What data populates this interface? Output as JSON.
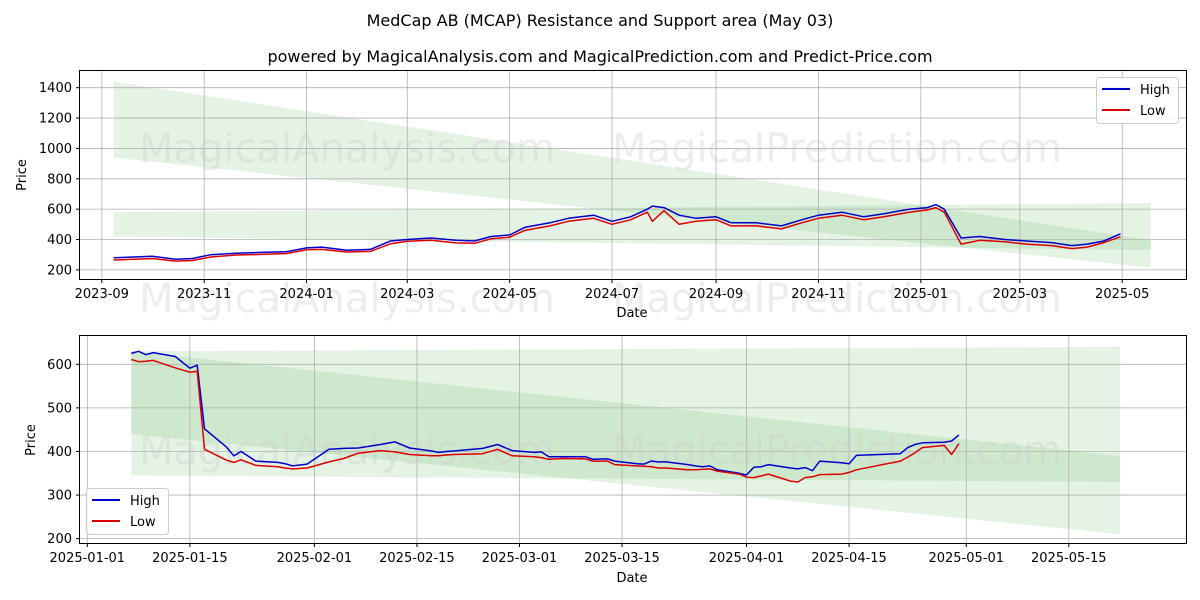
{
  "title": "MedCap AB (MCAP) Resistance and Support area (May 03)",
  "subtitle": "powered by MagicalAnalysis.com and MagicalPrediction.com and Predict-Price.com",
  "watermarks": [
    "MagicalAnalysis.com",
    "MagicalPrediction.com"
  ],
  "colors": {
    "high": "#0000cc",
    "low": "#dd0000",
    "band": "#2ca02c"
  },
  "chart_data": [
    {
      "type": "line",
      "xlabel": "Date",
      "ylabel": "Price",
      "xlim": [
        "2023-08-19",
        "2025-06-08"
      ],
      "ylim": [
        140,
        1510
      ],
      "xticks": [
        "2023-09",
        "2023-11",
        "2024-01",
        "2024-03",
        "2024-05",
        "2024-07",
        "2024-09",
        "2024-11",
        "2025-01",
        "2025-03",
        "2025-05"
      ],
      "yticks": [
        200,
        400,
        600,
        800,
        1000,
        1200,
        1400
      ],
      "grid": true,
      "legend": "top-right",
      "bands": [
        {
          "x": [
            "2023-09-08",
            "2025-05-18"
          ],
          "upper": [
            1440,
            395
          ],
          "lower": [
            940,
            215
          ]
        },
        {
          "x": [
            "2023-09-08",
            "2025-05-18"
          ],
          "upper": [
            580,
            640
          ],
          "lower": [
            420,
            330
          ]
        }
      ],
      "series": [
        {
          "name": "High",
          "x": [
            "2023-09-08",
            "2023-09-20",
            "2023-10-01",
            "2023-10-15",
            "2023-10-25",
            "2023-11-05",
            "2023-11-20",
            "2023-12-05",
            "2023-12-20",
            "2024-01-01",
            "2024-01-10",
            "2024-01-25",
            "2024-02-08",
            "2024-02-20",
            "2024-03-01",
            "2024-03-15",
            "2024-03-30",
            "2024-04-10",
            "2024-04-20",
            "2024-05-01",
            "2024-05-10",
            "2024-05-25",
            "2024-06-05",
            "2024-06-20",
            "2024-07-01",
            "2024-07-12",
            "2024-07-22",
            "2024-07-25",
            "2024-08-01",
            "2024-08-10",
            "2024-08-20",
            "2024-09-01",
            "2024-09-10",
            "2024-09-25",
            "2024-10-10",
            "2024-10-22",
            "2024-11-01",
            "2024-11-15",
            "2024-11-28",
            "2024-12-10",
            "2024-12-25",
            "2025-01-05",
            "2025-01-10",
            "2025-01-15",
            "2025-01-25",
            "2025-02-05",
            "2025-02-20",
            "2025-03-05",
            "2025-03-20",
            "2025-04-01",
            "2025-04-10",
            "2025-04-20",
            "2025-04-30"
          ],
          "values": [
            280,
            285,
            290,
            270,
            275,
            300,
            310,
            315,
            320,
            345,
            350,
            330,
            335,
            390,
            400,
            410,
            395,
            390,
            420,
            430,
            480,
            510,
            540,
            560,
            520,
            550,
            600,
            620,
            610,
            560,
            540,
            550,
            510,
            510,
            490,
            530,
            560,
            580,
            550,
            570,
            600,
            610,
            630,
            600,
            410,
            420,
            400,
            390,
            380,
            360,
            370,
            390,
            438
          ]
        },
        {
          "name": "Low",
          "x": [
            "2023-09-08",
            "2023-09-20",
            "2023-10-01",
            "2023-10-15",
            "2023-10-25",
            "2023-11-05",
            "2023-11-20",
            "2023-12-05",
            "2023-12-20",
            "2024-01-01",
            "2024-01-10",
            "2024-01-25",
            "2024-02-08",
            "2024-02-20",
            "2024-03-01",
            "2024-03-15",
            "2024-03-30",
            "2024-04-10",
            "2024-04-20",
            "2024-05-01",
            "2024-05-10",
            "2024-05-25",
            "2024-06-05",
            "2024-06-20",
            "2024-07-01",
            "2024-07-12",
            "2024-07-22",
            "2024-07-25",
            "2024-08-01",
            "2024-08-10",
            "2024-08-20",
            "2024-09-01",
            "2024-09-10",
            "2024-09-25",
            "2024-10-10",
            "2024-10-22",
            "2024-11-01",
            "2024-11-15",
            "2024-11-28",
            "2024-12-10",
            "2024-12-25",
            "2025-01-05",
            "2025-01-10",
            "2025-01-15",
            "2025-01-25",
            "2025-02-05",
            "2025-02-20",
            "2025-03-05",
            "2025-03-20",
            "2025-04-01",
            "2025-04-10",
            "2025-04-20",
            "2025-04-30"
          ],
          "values": [
            265,
            270,
            275,
            258,
            262,
            285,
            298,
            302,
            308,
            332,
            335,
            318,
            322,
            372,
            388,
            395,
            378,
            375,
            405,
            415,
            460,
            490,
            520,
            540,
            500,
            530,
            580,
            520,
            590,
            500,
            520,
            530,
            490,
            490,
            470,
            510,
            540,
            560,
            530,
            550,
            580,
            595,
            610,
            580,
            370,
            395,
            385,
            370,
            360,
            340,
            350,
            380,
            418
          ]
        }
      ]
    },
    {
      "type": "line",
      "xlabel": "Date",
      "ylabel": "Price",
      "xlim": [
        "2024-12-31",
        "2025-05-31"
      ],
      "ylim": [
        190,
        665
      ],
      "xticks": [
        "2025-01-01",
        "2025-01-15",
        "2025-02-01",
        "2025-02-15",
        "2025-03-01",
        "2025-03-15",
        "2025-04-01",
        "2025-04-15",
        "2025-05-01",
        "2025-05-15"
      ],
      "yticks": [
        200,
        300,
        400,
        500,
        600
      ],
      "grid": true,
      "legend": "bottom-left",
      "bands": [
        {
          "x": [
            "2025-01-07",
            "2025-05-22"
          ],
          "upper": [
            630,
            390
          ],
          "lower": [
            440,
            210
          ]
        },
        {
          "x": [
            "2025-01-07",
            "2025-05-22"
          ],
          "upper": [
            630,
            640
          ],
          "lower": [
            345,
            330
          ]
        }
      ],
      "series": [
        {
          "name": "High",
          "x": [
            "2025-01-07",
            "2025-01-08",
            "2025-01-09",
            "2025-01-10",
            "2025-01-13",
            "2025-01-15",
            "2025-01-16",
            "2025-01-17",
            "2025-01-20",
            "2025-01-21",
            "2025-01-22",
            "2025-01-24",
            "2025-01-27",
            "2025-01-28",
            "2025-01-29",
            "2025-01-31",
            "2025-02-03",
            "2025-02-04",
            "2025-02-05",
            "2025-02-07",
            "2025-02-10",
            "2025-02-12",
            "2025-02-14",
            "2025-02-17",
            "2025-02-18",
            "2025-02-19",
            "2025-02-20",
            "2025-02-24",
            "2025-02-26",
            "2025-02-28",
            "2025-03-03",
            "2025-03-04",
            "2025-03-05",
            "2025-03-07",
            "2025-03-10",
            "2025-03-11",
            "2025-03-13",
            "2025-03-14",
            "2025-03-17",
            "2025-03-18",
            "2025-03-19",
            "2025-03-20",
            "2025-03-21",
            "2025-03-24",
            "2025-03-25",
            "2025-03-26",
            "2025-03-27",
            "2025-03-28",
            "2025-03-31",
            "2025-04-01",
            "2025-04-02",
            "2025-04-03",
            "2025-04-04",
            "2025-04-07",
            "2025-04-08",
            "2025-04-09",
            "2025-04-10",
            "2025-04-11",
            "2025-04-14",
            "2025-04-15",
            "2025-04-16",
            "2025-04-22",
            "2025-04-23",
            "2025-04-24",
            "2025-04-25",
            "2025-04-28",
            "2025-04-29",
            "2025-04-30"
          ],
          "values": [
            625,
            630,
            622,
            627,
            618,
            591,
            598,
            452,
            410,
            390,
            400,
            378,
            375,
            372,
            367,
            371,
            405,
            406,
            407,
            408,
            416,
            422,
            408,
            401,
            398,
            400,
            401,
            407,
            416,
            402,
            398,
            399,
            388,
            388,
            388,
            382,
            383,
            378,
            372,
            371,
            378,
            376,
            376,
            370,
            367,
            365,
            367,
            358,
            350,
            346,
            364,
            365,
            370,
            362,
            360,
            363,
            356,
            378,
            374,
            372,
            391,
            395,
            409,
            416,
            420,
            421,
            424,
            438
          ]
        },
        {
          "name": "Low",
          "x": [
            "2025-01-07",
            "2025-01-08",
            "2025-01-09",
            "2025-01-10",
            "2025-01-13",
            "2025-01-15",
            "2025-01-16",
            "2025-01-17",
            "2025-01-20",
            "2025-01-21",
            "2025-01-22",
            "2025-01-24",
            "2025-01-27",
            "2025-01-28",
            "2025-01-29",
            "2025-01-31",
            "2025-02-03",
            "2025-02-04",
            "2025-02-05",
            "2025-02-07",
            "2025-02-10",
            "2025-02-12",
            "2025-02-14",
            "2025-02-17",
            "2025-02-18",
            "2025-02-19",
            "2025-02-20",
            "2025-02-24",
            "2025-02-26",
            "2025-02-28",
            "2025-03-03",
            "2025-03-04",
            "2025-03-05",
            "2025-03-07",
            "2025-03-10",
            "2025-03-11",
            "2025-03-13",
            "2025-03-14",
            "2025-03-17",
            "2025-03-18",
            "2025-03-19",
            "2025-03-20",
            "2025-03-21",
            "2025-03-24",
            "2025-03-25",
            "2025-03-26",
            "2025-03-27",
            "2025-03-28",
            "2025-03-31",
            "2025-04-01",
            "2025-04-02",
            "2025-04-03",
            "2025-04-04",
            "2025-04-07",
            "2025-04-08",
            "2025-04-09",
            "2025-04-10",
            "2025-04-11",
            "2025-04-14",
            "2025-04-15",
            "2025-04-16",
            "2025-04-22",
            "2025-04-23",
            "2025-04-24",
            "2025-04-25",
            "2025-04-28",
            "2025-04-29",
            "2025-04-30"
          ],
          "values": [
            611,
            606,
            607,
            609,
            592,
            582,
            584,
            405,
            380,
            375,
            381,
            368,
            365,
            362,
            360,
            362,
            376,
            380,
            384,
            396,
            402,
            399,
            393,
            390,
            390,
            392,
            393,
            395,
            405,
            390,
            388,
            386,
            382,
            384,
            383,
            378,
            378,
            370,
            367,
            366,
            365,
            362,
            362,
            358,
            358,
            359,
            360,
            355,
            348,
            341,
            340,
            344,
            348,
            332,
            330,
            340,
            342,
            347,
            348,
            352,
            358,
            378,
            387,
            397,
            409,
            414,
            393,
            418
          ]
        }
      ]
    }
  ]
}
